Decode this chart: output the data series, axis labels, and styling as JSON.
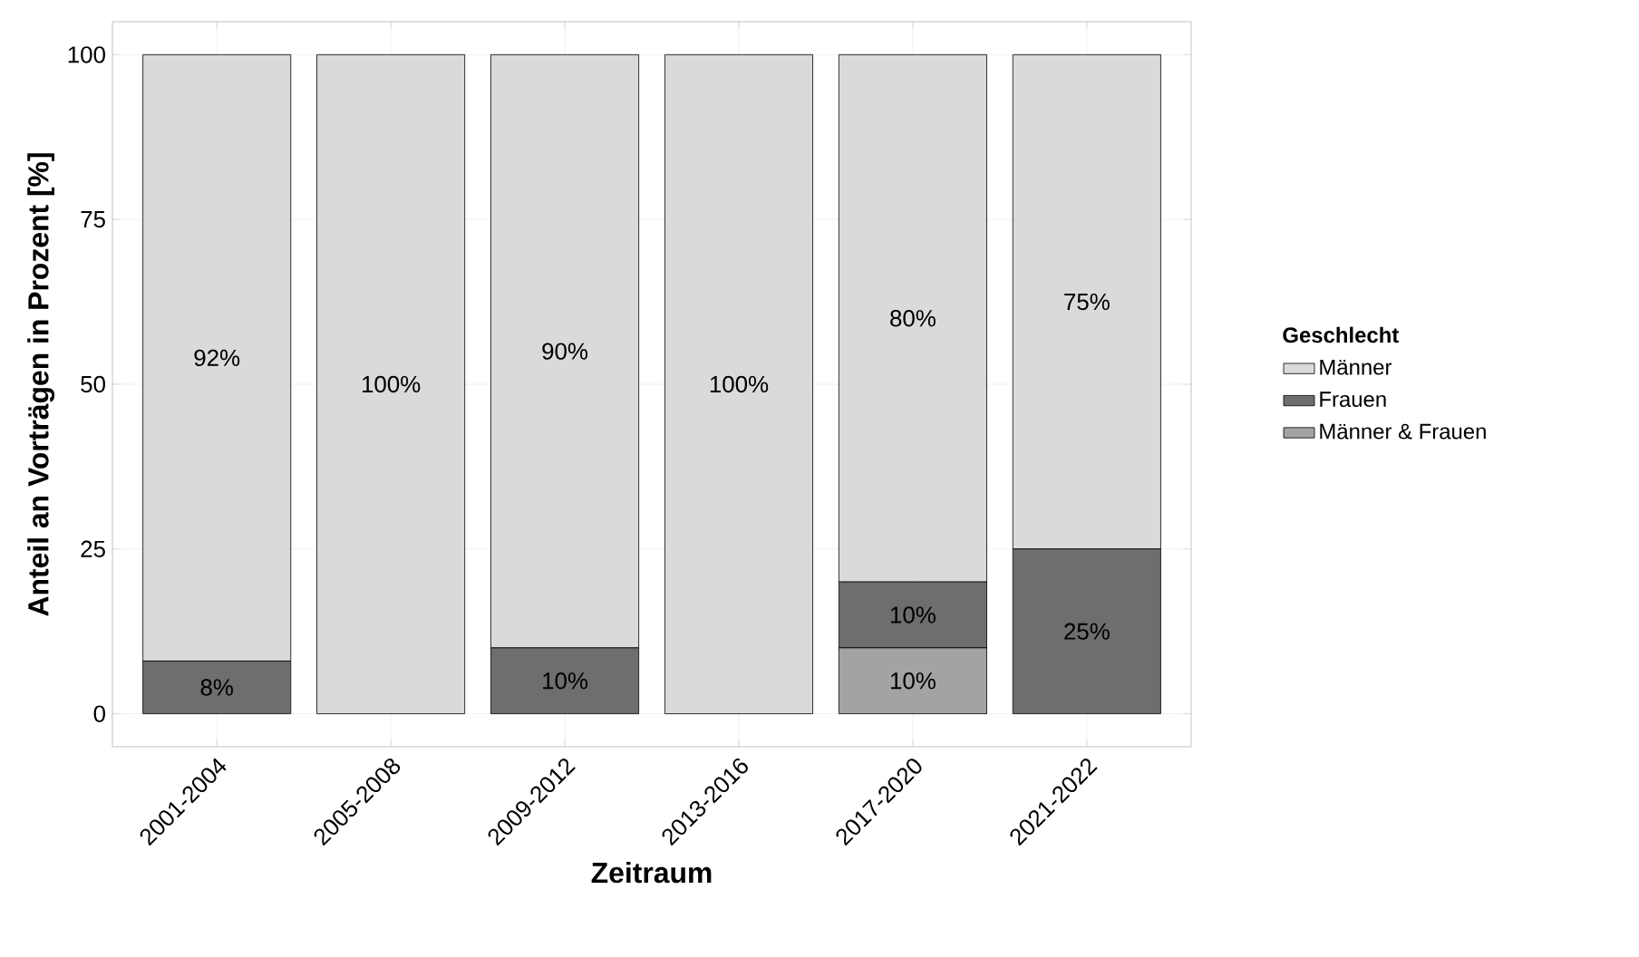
{
  "chart_data": {
    "type": "bar",
    "stacked": true,
    "xlabel": "Zeitraum",
    "ylabel": "Anteil an Vorträgen in Prozent [%]",
    "legend_title": "Geschlecht",
    "legend": "right",
    "grid": true,
    "categories": [
      "2001-2004",
      "2005-2008",
      "2009-2012",
      "2013-2016",
      "2017-2020",
      "2021-2022"
    ],
    "ylim": [
      -5,
      105
    ],
    "yticks": [
      0,
      25,
      50,
      75,
      100
    ],
    "series": [
      {
        "name": "Männer & Frauen",
        "color": "#a3a3a3",
        "values": [
          0,
          0,
          0,
          0,
          10,
          0
        ],
        "value_labels": [
          null,
          null,
          null,
          null,
          "10%",
          null
        ]
      },
      {
        "name": "Frauen",
        "color": "#6e6e6e",
        "values": [
          8,
          0,
          10,
          0,
          10,
          25
        ],
        "value_labels": [
          "8%",
          null,
          "10%",
          null,
          "10%",
          "25%"
        ]
      },
      {
        "name": "Männer",
        "color": "#dadada",
        "values": [
          92,
          100,
          90,
          100,
          80,
          75
        ],
        "value_labels": [
          "92%",
          "100%",
          "90%",
          "100%",
          "80%",
          "75%"
        ]
      }
    ]
  }
}
